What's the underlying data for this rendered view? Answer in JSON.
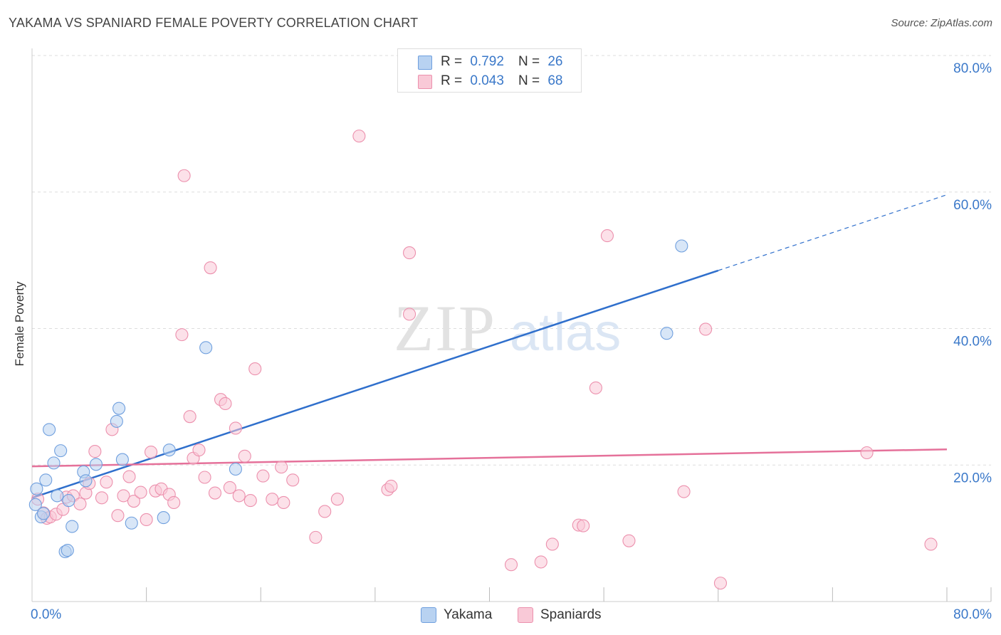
{
  "header": {
    "title": "YAKAMA VS SPANIARD FEMALE POVERTY CORRELATION CHART",
    "source": "Source: ZipAtlas.com"
  },
  "watermark": {
    "zip": "ZIP",
    "atlas": "atlas"
  },
  "legend_top": {
    "rows": [
      {
        "r_label": "R =",
        "r_value": "0.792",
        "n_label": "N =",
        "n_value": "26",
        "color": "#a9c8ef"
      },
      {
        "r_label": "R =",
        "r_value": "0.043",
        "n_label": "N =",
        "n_value": "68",
        "color": "#f6b8cb"
      }
    ]
  },
  "colors": {
    "yakama_fill": "#b8d2f1",
    "yakama_stroke": "#6f9fde",
    "yakama_line": "#2f6fcc",
    "spaniards_fill": "#f9c9d7",
    "spaniards_stroke": "#ec90ad",
    "spaniards_line": "#e5719a",
    "axis_text": "#3a78c9",
    "grid": "#dddddd"
  },
  "chart_data": {
    "type": "scatter",
    "title": "YAKAMA VS SPANIARD FEMALE POVERTY CORRELATION CHART",
    "xlabel": "",
    "ylabel": "Female Poverty",
    "xlim": [
      0,
      80
    ],
    "ylim": [
      0,
      80
    ],
    "x_tick_labels": [
      "0.0%",
      "80.0%"
    ],
    "y_tick_labels": [
      "20.0%",
      "40.0%",
      "60.0%",
      "80.0%"
    ],
    "y_ticks": [
      20,
      40,
      60,
      80
    ],
    "grid": true,
    "legend": "bottom-center",
    "series": [
      {
        "name": "Yakama",
        "r": 0.792,
        "n": 26,
        "trend": {
          "x0": 0,
          "y0": 15.2,
          "x1": 60,
          "y1": 48.5,
          "dashed_to_x": 80,
          "dashed_to_y": 59.6
        },
        "points": [
          [
            0.4,
            16.5
          ],
          [
            0.3,
            14.2
          ],
          [
            0.8,
            12.4
          ],
          [
            1.2,
            17.8
          ],
          [
            1.5,
            25.2
          ],
          [
            1.9,
            20.3
          ],
          [
            2.2,
            15.5
          ],
          [
            2.5,
            22.1
          ],
          [
            2.9,
            7.3
          ],
          [
            3.1,
            7.5
          ],
          [
            3.2,
            14.8
          ],
          [
            3.5,
            11.0
          ],
          [
            4.5,
            19.0
          ],
          [
            4.7,
            17.7
          ],
          [
            5.6,
            20.1
          ],
          [
            7.4,
            26.4
          ],
          [
            7.6,
            28.3
          ],
          [
            7.9,
            20.8
          ],
          [
            8.7,
            11.5
          ],
          [
            11.5,
            12.3
          ],
          [
            12.0,
            22.2
          ],
          [
            15.2,
            37.2
          ],
          [
            17.8,
            19.4
          ],
          [
            55.5,
            39.3
          ],
          [
            56.8,
            52.1
          ],
          [
            1.0,
            12.9
          ]
        ]
      },
      {
        "name": "Spaniards",
        "r": 0.043,
        "n": 68,
        "trend": {
          "x0": 0,
          "y0": 19.8,
          "x1": 80,
          "y1": 22.3
        },
        "points": [
          [
            0.5,
            15.0
          ],
          [
            1.0,
            13.0
          ],
          [
            1.3,
            12.2
          ],
          [
            1.6,
            12.4
          ],
          [
            2.1,
            12.8
          ],
          [
            2.7,
            13.5
          ],
          [
            3.0,
            15.3
          ],
          [
            3.6,
            15.5
          ],
          [
            4.2,
            14.3
          ],
          [
            4.7,
            15.9
          ],
          [
            5.0,
            17.3
          ],
          [
            5.5,
            22.0
          ],
          [
            6.1,
            15.2
          ],
          [
            6.5,
            17.5
          ],
          [
            7.0,
            25.2
          ],
          [
            7.5,
            12.6
          ],
          [
            8.0,
            15.5
          ],
          [
            8.5,
            18.3
          ],
          [
            8.9,
            14.7
          ],
          [
            9.5,
            16.0
          ],
          [
            10.0,
            12.0
          ],
          [
            10.4,
            21.9
          ],
          [
            10.8,
            16.2
          ],
          [
            11.3,
            16.5
          ],
          [
            12.0,
            15.7
          ],
          [
            12.4,
            14.5
          ],
          [
            13.1,
            39.1
          ],
          [
            13.3,
            62.4
          ],
          [
            13.8,
            27.1
          ],
          [
            14.1,
            21.0
          ],
          [
            14.6,
            22.2
          ],
          [
            15.1,
            18.2
          ],
          [
            15.6,
            48.9
          ],
          [
            16.0,
            15.9
          ],
          [
            16.5,
            29.6
          ],
          [
            16.9,
            29.0
          ],
          [
            17.3,
            16.7
          ],
          [
            17.8,
            25.4
          ],
          [
            18.1,
            15.5
          ],
          [
            18.6,
            21.3
          ],
          [
            19.1,
            14.8
          ],
          [
            19.5,
            34.1
          ],
          [
            20.2,
            18.4
          ],
          [
            21.0,
            15.0
          ],
          [
            21.8,
            19.7
          ],
          [
            22.0,
            14.5
          ],
          [
            22.8,
            17.8
          ],
          [
            24.8,
            9.4
          ],
          [
            25.6,
            13.2
          ],
          [
            26.7,
            15.0
          ],
          [
            28.6,
            68.2
          ],
          [
            31.1,
            16.4
          ],
          [
            31.4,
            16.9
          ],
          [
            33.0,
            51.1
          ],
          [
            33.0,
            42.1
          ],
          [
            41.9,
            5.4
          ],
          [
            44.5,
            5.8
          ],
          [
            45.5,
            8.4
          ],
          [
            47.8,
            11.2
          ],
          [
            48.2,
            11.1
          ],
          [
            49.3,
            31.3
          ],
          [
            50.3,
            53.6
          ],
          [
            52.2,
            8.9
          ],
          [
            57.0,
            16.1
          ],
          [
            58.9,
            39.9
          ],
          [
            60.2,
            2.7
          ],
          [
            73.0,
            21.8
          ],
          [
            78.6,
            8.4
          ]
        ]
      }
    ]
  },
  "bottom_legend": {
    "items": [
      {
        "label": "Yakama"
      },
      {
        "label": "Spaniards"
      }
    ]
  }
}
